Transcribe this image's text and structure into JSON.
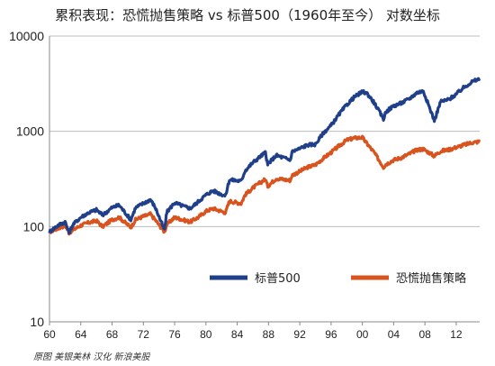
{
  "chart_data": {
    "type": "line",
    "title": "累积表现：恐慌抛售策略 vs 标普500（1960年至今）  对数坐标",
    "xlabel": "",
    "ylabel": "",
    "yscale": "log",
    "ylim": [
      10,
      10000
    ],
    "xlim": [
      1960,
      2015
    ],
    "y_ticks": [
      "10",
      "100",
      "1000",
      "10000"
    ],
    "x_ticks": [
      "60",
      "64",
      "68",
      "72",
      "76",
      "80",
      "84",
      "88",
      "92",
      "96",
      "00",
      "04",
      "08",
      "12"
    ],
    "grid": "horizontal",
    "legend_position": "bottom-center",
    "series": [
      {
        "name": "标普500",
        "color": "#1f3f8a",
        "x": [
          1960,
          1961,
          1962,
          1962.5,
          1963,
          1964,
          1965,
          1966,
          1966.8,
          1968,
          1968.9,
          1970.4,
          1971,
          1972,
          1972.9,
          1973.5,
          1974.7,
          1975,
          1976,
          1977,
          1978,
          1979,
          1980,
          1980.9,
          1982.5,
          1983,
          1984.5,
          1985,
          1986,
          1987.6,
          1987.9,
          1988,
          1989,
          1990.8,
          1991,
          1992,
          1993,
          1994,
          1995,
          1996,
          1997,
          1998,
          1999,
          2000,
          2000.6,
          2001.5,
          2002.7,
          2003,
          2004,
          2005,
          2006,
          2007,
          2007.8,
          2008.5,
          2009.2,
          2010,
          2011,
          2012,
          2013,
          2014,
          2015
        ],
        "values": [
          88,
          102,
          112,
          86,
          105,
          125,
          140,
          150,
          132,
          158,
          168,
          118,
          158,
          175,
          192,
          160,
          92,
          142,
          178,
          165,
          155,
          182,
          215,
          238,
          210,
          310,
          300,
          385,
          470,
          600,
          440,
          460,
          560,
          500,
          610,
          660,
          720,
          730,
          960,
          1150,
          1500,
          1900,
          2300,
          2600,
          2500,
          2000,
          1350,
          1600,
          1850,
          1980,
          2200,
          2550,
          2650,
          1850,
          1300,
          2050,
          2150,
          2450,
          2900,
          3300,
          3550
        ]
      },
      {
        "name": "恐慌抛售策略",
        "color": "#d9531e",
        "x": [
          1960,
          1961,
          1962,
          1962.5,
          1963,
          1964,
          1965,
          1966,
          1966.8,
          1968,
          1968.9,
          1970.4,
          1971,
          1972,
          1972.9,
          1973.5,
          1974.7,
          1975,
          1976,
          1977,
          1978,
          1979,
          1980,
          1980.9,
          1982.5,
          1983,
          1984.5,
          1985,
          1986,
          1987.6,
          1987.9,
          1988,
          1989,
          1990.8,
          1991,
          1992,
          1993,
          1994,
          1995,
          1996,
          1997,
          1998,
          1999,
          2000,
          2000.6,
          2001.5,
          2002.7,
          2003,
          2004,
          2005,
          2006,
          2007,
          2007.8,
          2008.5,
          2009.2,
          2010,
          2011,
          2012,
          2013,
          2014,
          2015
        ],
        "values": [
          88,
          95,
          103,
          86,
          92,
          103,
          110,
          115,
          100,
          118,
          125,
          98,
          118,
          128,
          135,
          118,
          88,
          105,
          125,
          118,
          112,
          125,
          145,
          155,
          140,
          185,
          175,
          215,
          255,
          315,
          265,
          270,
          320,
          305,
          345,
          380,
          420,
          445,
          520,
          600,
          700,
          810,
          850,
          860,
          740,
          600,
          420,
          450,
          500,
          530,
          580,
          640,
          650,
          600,
          550,
          620,
          640,
          680,
          720,
          760,
          780
        ]
      }
    ]
  },
  "source_note": "原图 美银美林  汉化 新浪美股"
}
